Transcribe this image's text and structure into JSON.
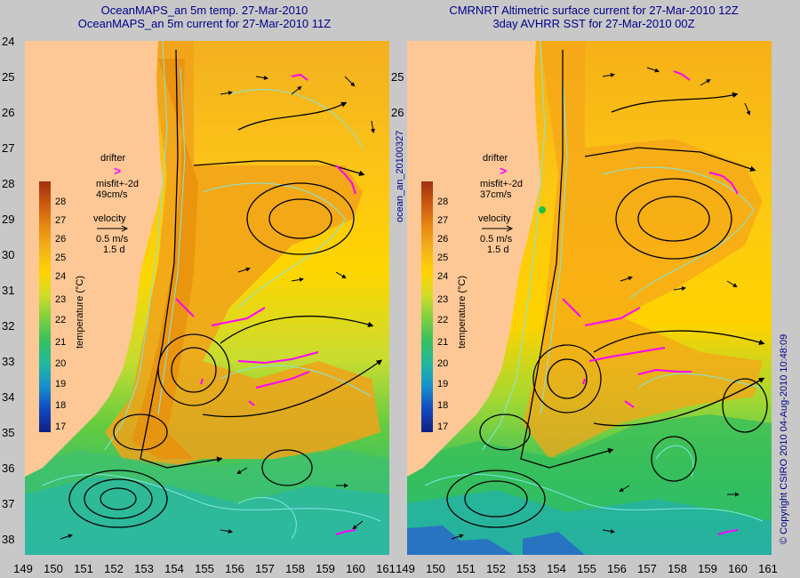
{
  "left_title": {
    "line1": "OceanMAPS_an 5m temp. 27-Mar-2010",
    "line2": "OceanMAPS_an 5m current for 27-Mar-2010 11Z"
  },
  "right_title": {
    "line1": "CMRNRT Altimetric surface current for 27-Mar-2010 12Z",
    "line2": "3day AVHRR SST for 27-Mar-2010 00Z"
  },
  "y_labels": [
    "24",
    "25",
    "26",
    "27",
    "28",
    "29",
    "30",
    "31",
    "32",
    "33",
    "34",
    "35",
    "36",
    "37",
    "38"
  ],
  "x_labels": [
    "149",
    "150",
    "151",
    "152",
    "153",
    "154",
    "155",
    "156",
    "157",
    "158",
    "159",
    "160",
    "161"
  ],
  "left_legend": {
    "drifter": "drifter",
    "misfit": "misfit+-2d",
    "misfit_speed": "49cm/s",
    "velocity": "velocity",
    "velocity_scale": "0.5 m/s",
    "velocity_time": "1.5 d"
  },
  "right_legend": {
    "drifter": "drifter",
    "misfit": "misfit+-2d",
    "misfit_speed": "37cm/s",
    "velocity": "velocity",
    "velocity_scale": "0.5 m/s",
    "velocity_time": "1.5 d"
  },
  "colorbar": {
    "title": "temperature (°C)",
    "ticks": [
      "28",
      "27",
      "26",
      "25",
      "24",
      "23",
      "22",
      "21",
      "20",
      "19",
      "18",
      "17"
    ]
  },
  "side_text": "ocean_an_20100327",
  "copyright": "© Copyright CSIRO 2010   04-Aug-2010 10:48:09",
  "colors": {
    "land": "#fdc896",
    "warm": "#ee9a10",
    "mid": "#ffd400",
    "cool": "#70d040",
    "cold": "#2cb8a0",
    "contour": "#7fe6e6",
    "drifter": "#ff00ff"
  }
}
